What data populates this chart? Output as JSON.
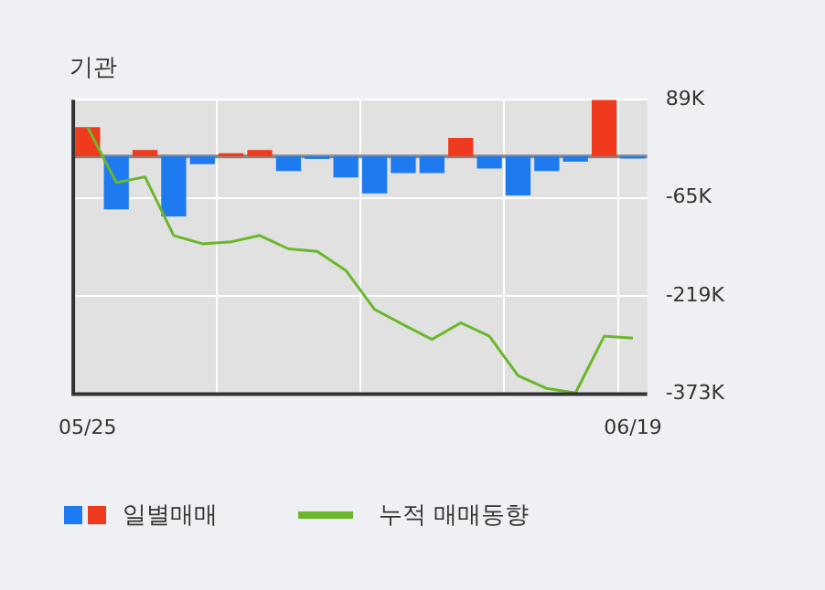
{
  "chart_data": {
    "type": "bar",
    "title": "기관",
    "categories": [
      "05/25",
      null,
      null,
      null,
      null,
      null,
      null,
      null,
      null,
      null,
      null,
      null,
      null,
      null,
      null,
      null,
      null,
      null,
      null,
      "06/19"
    ],
    "series": [
      {
        "name": "일별매매",
        "colors": [
          "#f03a1e",
          "#1e7af0",
          "#f03a1e",
          "#1e7af0",
          "#1e7af0",
          "#f03a1e",
          "#f03a1e",
          "#1e7af0",
          "#1e7af0",
          "#1e7af0",
          "#1e7af0",
          "#1e7af0",
          "#1e7af0",
          "#f03a1e",
          "#1e7af0",
          "#1e7af0",
          "#1e7af0",
          "#1e7af0",
          "#f03a1e",
          "#1e7af0"
        ],
        "values": [
          46,
          -83,
          10,
          -94,
          -12,
          5,
          10,
          -23,
          -4,
          -33,
          -58,
          -26,
          -26,
          29,
          -19,
          -61,
          -23,
          -8,
          89,
          -3
        ]
      },
      {
        "name": "누적 매매동향",
        "type": "line",
        "color": "#6ab82a",
        "values": [
          46,
          -41,
          -32,
          -124,
          -137,
          -134,
          -124,
          -145,
          -149,
          -179,
          -240,
          -264,
          -287,
          -261,
          -282,
          -344,
          -364,
          -371,
          -282,
          -285
        ]
      }
    ],
    "ylim": [
      -373,
      89
    ],
    "yticks": [
      {
        "value": 89,
        "label": "89K"
      },
      {
        "value": -65,
        "label": "-65K"
      },
      {
        "value": -219,
        "label": "-219K"
      },
      {
        "value": -373,
        "label": "-373K"
      }
    ],
    "ref_lines": [
      {
        "axis": "y",
        "value": 0,
        "color": "#888888"
      }
    ],
    "grid": true,
    "legend": "bottom",
    "marker": "none"
  }
}
